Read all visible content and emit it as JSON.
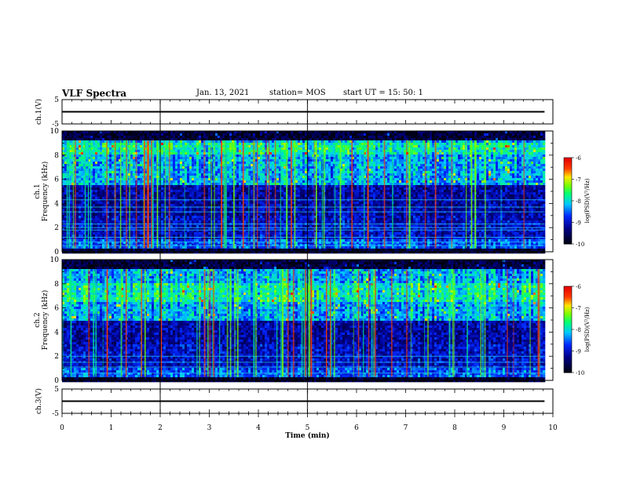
{
  "header": {
    "title": "VLF Spectra",
    "date": "Jan. 13, 2021",
    "station": "station= MOS",
    "start": "start UT =  15: 50: 1"
  },
  "chart_data": [
    {
      "type": "line",
      "panel": "ch.1 voltage",
      "ylabel": "ch.1(V)",
      "ylim": [
        -5,
        5
      ],
      "yticks": [
        "5",
        "-5"
      ],
      "series": [
        {
          "x": [
            0,
            9.83
          ],
          "y": [
            0,
            0
          ]
        }
      ]
    },
    {
      "type": "heatmap",
      "panel": "ch.1 spectrogram",
      "ylabel": "ch.1\nFrequency (kHz)",
      "ylim": [
        0,
        10
      ],
      "yticks": [
        "0",
        "2",
        "4",
        "6",
        "8",
        "10"
      ],
      "data_x_range": [
        0,
        9.83
      ],
      "colorbar": {
        "label": "log(PSD)(V²/Hz)",
        "range": [
          -10,
          -6
        ],
        "ticks": [
          "-6",
          "-7",
          "-8",
          "-9",
          "-10"
        ]
      },
      "profile": {
        "low_band_kHz": [
          0.3,
          1.0
        ],
        "strong_band_kHz": [
          5.5,
          9.0
        ],
        "peak_band_kHz": [
          8.0,
          9.0
        ]
      },
      "lines_kHz": [
        0.5,
        0.8,
        1.2,
        1.8,
        2.0,
        2.3,
        3.3,
        3.7,
        4.3
      ]
    },
    {
      "type": "heatmap",
      "panel": "ch.2 spectrogram",
      "ylabel": "ch.2\nFrequency (kHz)",
      "ylim": [
        0,
        10
      ],
      "yticks": [
        "0",
        "2",
        "4",
        "6",
        "8",
        "10"
      ],
      "data_x_range": [
        0,
        9.83
      ],
      "colorbar": {
        "label": "log(PSD)(V²/Hz)",
        "range": [
          -10,
          -6
        ],
        "ticks": [
          "-6",
          "-7",
          "-8",
          "-9",
          "-10"
        ]
      },
      "profile": {
        "low_band_kHz": [
          0.3,
          1.0
        ],
        "strong_band_kHz": [
          5.0,
          9.0
        ],
        "peak_band_kHz": [
          6.5,
          8.0
        ]
      },
      "lines_kHz": [
        0.6,
        1.1,
        1.5,
        2.0
      ]
    },
    {
      "type": "line",
      "panel": "ch.3 voltage",
      "ylabel": "ch.3(V)",
      "ylim": [
        -5,
        5
      ],
      "yticks": [
        "5",
        "-5"
      ],
      "series": [
        {
          "x": [
            0,
            9.83
          ],
          "y": [
            0,
            0
          ]
        }
      ]
    }
  ],
  "xaxis": {
    "label": "Time (min)",
    "range": [
      0,
      10
    ],
    "ticks": [
      "0",
      "1",
      "2",
      "3",
      "4",
      "5",
      "6",
      "7",
      "8",
      "9",
      "10"
    ]
  }
}
